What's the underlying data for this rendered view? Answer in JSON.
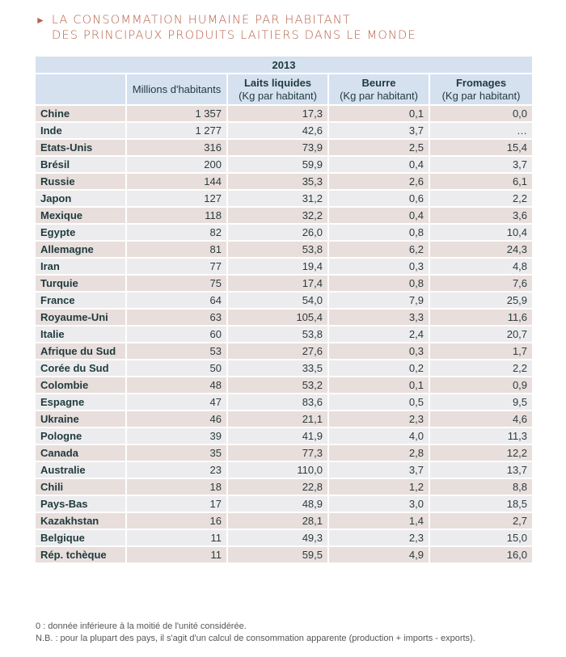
{
  "title": {
    "line1": "La consommation humaine par habitant",
    "line2": "des principaux produits laitiers dans le monde",
    "icon": "triangle-right-icon"
  },
  "table": {
    "year": "2013",
    "columns": [
      {
        "label": "",
        "unit": ""
      },
      {
        "label": "Millions d'habitants",
        "unit": ""
      },
      {
        "label": "Laits liquides",
        "unit": "(Kg par habitant)"
      },
      {
        "label": "Beurre",
        "unit": "(Kg par habitant)"
      },
      {
        "label": "Fromages",
        "unit": "(Kg par habitant)"
      }
    ],
    "rows": [
      [
        "Chine",
        "1 357",
        "17,3",
        "0,1",
        "0,0"
      ],
      [
        "Inde",
        "1 277",
        "42,6",
        "3,7",
        "…"
      ],
      [
        "Etats-Unis",
        "316",
        "73,9",
        "2,5",
        "15,4"
      ],
      [
        "Brésil",
        "200",
        "59,9",
        "0,4",
        "3,7"
      ],
      [
        "Russie",
        "144",
        "35,3",
        "2,6",
        "6,1"
      ],
      [
        "Japon",
        "127",
        "31,2",
        "0,6",
        "2,2"
      ],
      [
        "Mexique",
        "118",
        "32,2",
        "0,4",
        "3,6"
      ],
      [
        "Egypte",
        "82",
        "26,0",
        "0,8",
        "10,4"
      ],
      [
        "Allemagne",
        "81",
        "53,8",
        "6,2",
        "24,3"
      ],
      [
        "Iran",
        "77",
        "19,4",
        "0,3",
        "4,8"
      ],
      [
        "Turquie",
        "75",
        "17,4",
        "0,8",
        "7,6"
      ],
      [
        "France",
        "64",
        "54,0",
        "7,9",
        "25,9"
      ],
      [
        "Royaume-Uni",
        "63",
        "105,4",
        "3,3",
        "11,6"
      ],
      [
        "Italie",
        "60",
        "53,8",
        "2,4",
        "20,7"
      ],
      [
        "Afrique du Sud",
        "53",
        "27,6",
        "0,3",
        "1,7"
      ],
      [
        "Corée du Sud",
        "50",
        "33,5",
        "0,2",
        "2,2"
      ],
      [
        "Colombie",
        "48",
        "53,2",
        "0,1",
        "0,9"
      ],
      [
        "Espagne",
        "47",
        "83,6",
        "0,5",
        "9,5"
      ],
      [
        "Ukraine",
        "46",
        "21,1",
        "2,3",
        "4,6"
      ],
      [
        "Pologne",
        "39",
        "41,9",
        "4,0",
        "11,3"
      ],
      [
        "Canada",
        "35",
        "77,3",
        "2,8",
        "12,2"
      ],
      [
        "Australie",
        "23",
        "110,0",
        "3,7",
        "13,7"
      ],
      [
        "Chili",
        "18",
        "22,8",
        "1,2",
        "8,8"
      ],
      [
        "Pays-Bas",
        "17",
        "48,9",
        "3,0",
        "18,5"
      ],
      [
        "Kazakhstan",
        "16",
        "28,1",
        "1,4",
        "2,7"
      ],
      [
        "Belgique",
        "11",
        "49,3",
        "2,3",
        "15,0"
      ],
      [
        "Rép. tchèque",
        "11",
        "59,5",
        "4,9",
        "16,0"
      ]
    ]
  },
  "notes": [
    "0 : donnée inférieure à la moitié de l'unité considérée.",
    "N.B. : pour la plupart des pays, il s'agit d'un calcul de consommation apparente (production + imports - exports)."
  ],
  "colors": {
    "title": "#b8604a",
    "header_bg": "#d5e1ef",
    "row_odd": "#e8dedc",
    "row_even": "#ececee"
  }
}
